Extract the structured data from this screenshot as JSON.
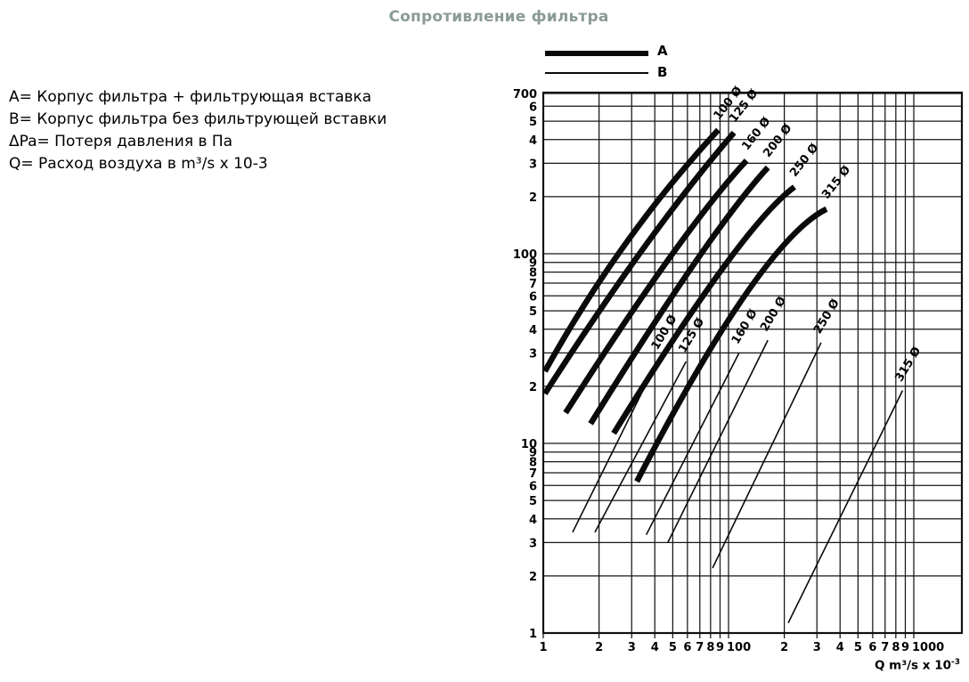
{
  "title": "Сопротивление фильтра",
  "title_color": "#8a9b97",
  "legend": {
    "a_label": "A",
    "b_label": "B"
  },
  "info_lines": [
    "A= Корпус фильтра + фильтрующая вставка",
    "B= Корпус фильтра без фильтрующей вставки",
    "ΔPa= Потеря давления в Па",
    "Q= Расход воздуха в m³/s x 10-3"
  ],
  "chart_data": {
    "type": "line",
    "scale": "log-log",
    "grid": "on",
    "x_axis": {
      "label": "Q m³/s x 10",
      "label_sup": "-3",
      "range": [
        10,
        1800
      ],
      "ticks": [
        {
          "v": 10,
          "label": "1"
        },
        {
          "v": 20,
          "label": "2"
        },
        {
          "v": 30,
          "label": "3"
        },
        {
          "v": 40,
          "label": "4"
        },
        {
          "v": 50,
          "label": "5"
        },
        {
          "v": 60,
          "label": "6"
        },
        {
          "v": 70,
          "label": "7"
        },
        {
          "v": 80,
          "label": "8"
        },
        {
          "v": 90,
          "label": "9"
        },
        {
          "v": 100,
          "label": "100"
        },
        {
          "v": 200,
          "label": "2"
        },
        {
          "v": 300,
          "label": "3"
        },
        {
          "v": 400,
          "label": "4"
        },
        {
          "v": 500,
          "label": "5"
        },
        {
          "v": 600,
          "label": "6"
        },
        {
          "v": 700,
          "label": "7"
        },
        {
          "v": 800,
          "label": "8"
        },
        {
          "v": 900,
          "label": "9"
        },
        {
          "v": 1000,
          "label": "1000"
        }
      ]
    },
    "y_axis": {
      "unit_explained_as": "ΔPa",
      "range": [
        1,
        700
      ],
      "ticks": [
        {
          "v": 700,
          "label": "700"
        },
        {
          "v": 600,
          "label": "6"
        },
        {
          "v": 500,
          "label": "5"
        },
        {
          "v": 400,
          "label": "4"
        },
        {
          "v": 300,
          "label": "3"
        },
        {
          "v": 200,
          "label": "2"
        },
        {
          "v": 100,
          "label": "100"
        },
        {
          "v": 90,
          "label": "9"
        },
        {
          "v": 80,
          "label": "8"
        },
        {
          "v": 70,
          "label": "7"
        },
        {
          "v": 60,
          "label": "6"
        },
        {
          "v": 50,
          "label": "5"
        },
        {
          "v": 40,
          "label": "4"
        },
        {
          "v": 30,
          "label": "3"
        },
        {
          "v": 20,
          "label": "2"
        },
        {
          "v": 10,
          "label": "10"
        },
        {
          "v": 9,
          "label": "9"
        },
        {
          "v": 8,
          "label": "8"
        },
        {
          "v": 7,
          "label": "7"
        },
        {
          "v": 6,
          "label": "6"
        },
        {
          "v": 5,
          "label": "5"
        },
        {
          "v": 4,
          "label": "4"
        },
        {
          "v": 3,
          "label": "3"
        },
        {
          "v": 2,
          "label": "2"
        },
        {
          "v": 1,
          "label": "1"
        }
      ]
    },
    "series": [
      {
        "group": "A",
        "name": "100 Ø",
        "style": "thick",
        "points": [
          [
            10.2,
            24
          ],
          [
            28,
            114
          ],
          [
            88,
            450
          ]
        ]
      },
      {
        "group": "A",
        "name": "125 Ø",
        "style": "thick",
        "points": [
          [
            10.2,
            18.3
          ],
          [
            35,
            108
          ],
          [
            107,
            435
          ]
        ]
      },
      {
        "group": "A",
        "name": "160 Ø",
        "style": "thick",
        "points": [
          [
            13.2,
            14.5
          ],
          [
            48,
            95
          ],
          [
            125,
            310
          ]
        ]
      },
      {
        "group": "A",
        "name": "200 Ø",
        "style": "thick",
        "points": [
          [
            18,
            12.7
          ],
          [
            66,
            90
          ],
          [
            163,
            285
          ]
        ]
      },
      {
        "group": "A",
        "name": "250 Ø",
        "style": "thick",
        "points": [
          [
            24,
            11.3
          ],
          [
            94,
            85
          ],
          [
            227,
            225
          ]
        ]
      },
      {
        "group": "A",
        "name": "315 Ø",
        "style": "thick",
        "points": [
          [
            32,
            6.3
          ],
          [
            125,
            62
          ],
          [
            338,
            172
          ]
        ]
      },
      {
        "group": "B",
        "name": "100 Ø",
        "style": "thin",
        "points": [
          [
            14.4,
            3.4
          ],
          [
            42,
            28
          ]
        ]
      },
      {
        "group": "B",
        "name": "125 Ø",
        "style": "thin",
        "points": [
          [
            19,
            3.4
          ],
          [
            59,
            27
          ]
        ]
      },
      {
        "group": "B",
        "name": "160 Ø",
        "style": "thin",
        "points": [
          [
            36,
            3.3
          ],
          [
            114,
            30
          ]
        ]
      },
      {
        "group": "B",
        "name": "200 Ø",
        "style": "thin",
        "points": [
          [
            47,
            3.0
          ],
          [
            163,
            35
          ]
        ]
      },
      {
        "group": "B",
        "name": "250 Ø",
        "style": "thin",
        "points": [
          [
            82,
            2.2
          ],
          [
            316,
            34
          ]
        ]
      },
      {
        "group": "B",
        "name": "315 Ø",
        "style": "thin",
        "points": [
          [
            210,
            1.13
          ],
          [
            870,
            19
          ]
        ]
      }
    ]
  }
}
